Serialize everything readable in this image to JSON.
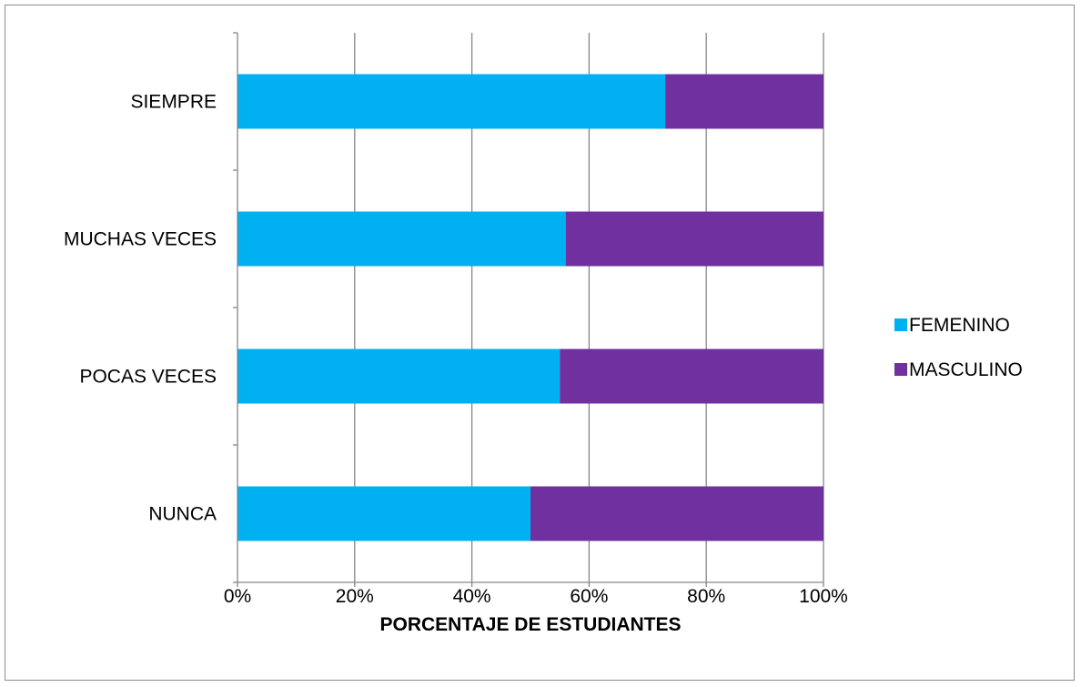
{
  "chart_data": {
    "type": "bar",
    "orientation": "horizontal",
    "stacked": "percent",
    "categories": [
      "SIEMPRE",
      "MUCHAS VECES",
      "POCAS VECES",
      "NUNCA"
    ],
    "series": [
      {
        "name": "FEMENINO",
        "color": "#00b0f0",
        "values": [
          73,
          56,
          55,
          50
        ]
      },
      {
        "name": "MASCULINO",
        "color": "#7030a0",
        "values": [
          27,
          44,
          45,
          50
        ]
      }
    ],
    "xlabel": "PORCENTAJE DE ESTUDIANTES",
    "ylabel": "",
    "xlim": [
      0,
      100
    ],
    "x_ticks": [
      "0%",
      "20%",
      "40%",
      "60%",
      "80%",
      "100%"
    ],
    "grid": "vertical",
    "legend_position": "right"
  }
}
